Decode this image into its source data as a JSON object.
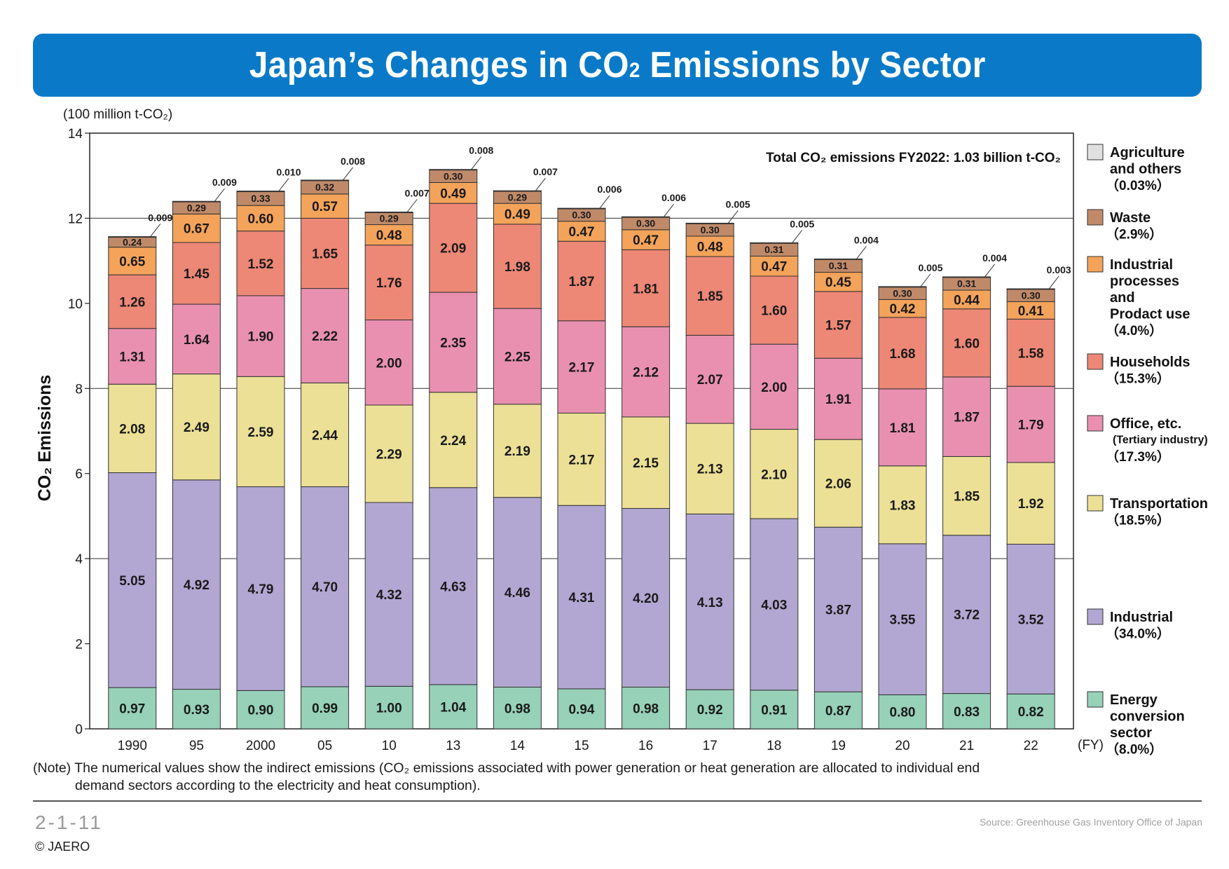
{
  "title": {
    "main": "Japan’s Changes in CO",
    "sub": "2",
    "rest": " Emissions by Sector"
  },
  "note": {
    "line1": "(Note) The numerical values show the indirect emissions (CO₂ emissions associated with power generation or heat generation are allocated to individual end",
    "line2": "demand sectors according to the electricity and heat consumption)."
  },
  "figure_number": "2-1-11",
  "copyright": "© JAERO",
  "source": "Source: Greenhouse Gas Inventory Office of Japan",
  "colors": {
    "energy": "#96d1b8",
    "industrial": "#b2a7d2",
    "transportation": "#ebe095",
    "office": "#e990b0",
    "households": "#ed8776",
    "industrial_processes": "#f4a35a",
    "waste": "#c08a69",
    "agriculture": "#e0e0e0",
    "title_bar": "#0a7ac8"
  },
  "chart_data": {
    "type": "bar",
    "stacked": true,
    "title": "Japan’s Changes in CO₂ Emissions by Sector",
    "unit_label": "(100 million t-CO₂)",
    "ylabel": "CO₂ Emissions",
    "xlabel_suffix": "(FY)",
    "annotation": "Total CO₂ emissions FY2022: 1.03 billion t-CO₂",
    "ylim": [
      0,
      14
    ],
    "yticks": [
      0,
      2,
      4,
      6,
      8,
      10,
      12,
      14
    ],
    "grid": "horizontal at 4, 8, 12",
    "legend_position": "right",
    "categories": [
      "1990",
      "95",
      "2000",
      "05",
      "10",
      "13",
      "14",
      "15",
      "16",
      "17",
      "18",
      "19",
      "20",
      "21",
      "22"
    ],
    "series": [
      {
        "name": "Energy conversion sector",
        "percent": "(8.0%)",
        "color": "#96d1b8",
        "values": [
          0.97,
          0.93,
          0.9,
          0.99,
          1.0,
          1.04,
          0.98,
          0.94,
          0.98,
          0.92,
          0.91,
          0.87,
          0.8,
          0.83,
          0.82
        ],
        "labels": [
          "0.97",
          "0.93",
          "0.90",
          "0.99",
          "1.00",
          "1.04",
          "0.98",
          "0.94",
          "0.98",
          "0.92",
          "0.91",
          "0.87",
          "0.80",
          "0.83",
          "0.82"
        ]
      },
      {
        "name": "Industrial",
        "percent": "(34.0%)",
        "color": "#b2a7d2",
        "values": [
          5.05,
          4.92,
          4.79,
          4.7,
          4.32,
          4.63,
          4.46,
          4.31,
          4.2,
          4.13,
          4.03,
          3.87,
          3.55,
          3.72,
          3.52
        ],
        "labels": [
          "5.05",
          "4.92",
          "4.79",
          "4.70",
          "4.32",
          "4.63",
          "4.46",
          "4.31",
          "4.20",
          "4.13",
          "4.03",
          "3.87",
          "3.55",
          "3.72",
          "3.52"
        ]
      },
      {
        "name": "Transportation",
        "percent": "(18.5%)",
        "color": "#ebe095",
        "values": [
          2.08,
          2.49,
          2.59,
          2.44,
          2.29,
          2.24,
          2.19,
          2.17,
          2.15,
          2.13,
          2.1,
          2.06,
          1.83,
          1.85,
          1.92
        ],
        "labels": [
          "2.08",
          "2.49",
          "2.59",
          "2.44",
          "2.29",
          "2.24",
          "2.19",
          "2.17",
          "2.15",
          "2.13",
          "2.10",
          "2.06",
          "1.83",
          "1.85",
          "1.92"
        ]
      },
      {
        "name": "Office, etc.",
        "subname": "(Tertiary industry)",
        "percent": "(17.3%)",
        "color": "#e990b0",
        "values": [
          1.31,
          1.64,
          1.9,
          2.22,
          2.0,
          2.35,
          2.25,
          2.17,
          2.12,
          2.07,
          2.0,
          1.91,
          1.81,
          1.87,
          1.79
        ],
        "labels": [
          "1.31",
          "1.64",
          "1.90",
          "2.22",
          "2.00",
          "2.35",
          "2.25",
          "2.17",
          "2.12",
          "2.07",
          "2.00",
          "1.91",
          "1.81",
          "1.87",
          "1.79"
        ]
      },
      {
        "name": "Households",
        "percent": "(15.3%)",
        "color": "#ed8776",
        "values": [
          1.26,
          1.45,
          1.52,
          1.65,
          1.76,
          2.09,
          1.98,
          1.87,
          1.81,
          1.85,
          1.6,
          1.57,
          1.68,
          1.6,
          1.58
        ],
        "labels": [
          "1.26",
          "1.45",
          "1.52",
          "1.65",
          "1.76",
          "2.09",
          "1.98",
          "1.87",
          "1.81",
          "1.85",
          "1.60",
          "1.57",
          "1.68",
          "1.60",
          "1.58"
        ]
      },
      {
        "name": "Industrial processes and Prodact use",
        "percent": "(4.0%)",
        "color": "#f4a35a",
        "values": [
          0.65,
          0.67,
          0.6,
          0.57,
          0.48,
          0.49,
          0.49,
          0.47,
          0.47,
          0.48,
          0.47,
          0.45,
          0.42,
          0.44,
          0.41
        ],
        "labels": [
          "0.65",
          "0.67",
          "0.60",
          "0.57",
          "0.48",
          "0.49",
          "0.49",
          "0.47",
          "0.47",
          "0.48",
          "0.47",
          "0.45",
          "0.42",
          "0.44",
          "0.41"
        ]
      },
      {
        "name": "Waste",
        "percent": "(2.9%)",
        "color": "#c08a69",
        "values": [
          0.24,
          0.29,
          0.33,
          0.32,
          0.29,
          0.3,
          0.29,
          0.3,
          0.3,
          0.3,
          0.31,
          0.31,
          0.3,
          0.31,
          0.3
        ],
        "labels": [
          "0.24",
          "0.29",
          "0.33",
          "0.32",
          "0.29",
          "0.30",
          "0.29",
          "0.30",
          "0.30",
          "0.30",
          "0.31",
          "0.31",
          "0.30",
          "0.31",
          "0.30"
        ]
      },
      {
        "name": "Agriculture and others",
        "percent": "(0.03%)",
        "color": "#e0e0e0",
        "values": [
          0.009,
          0.009,
          0.01,
          0.008,
          0.007,
          0.008,
          0.007,
          0.006,
          0.006,
          0.005,
          0.005,
          0.004,
          0.005,
          0.004,
          0.003
        ],
        "labels": [
          "0.009",
          "0.009",
          "0.010",
          "0.008",
          "0.007",
          "0.008",
          "0.007",
          "0.006",
          "0.006",
          "0.005",
          "0.005",
          "0.004",
          "0.005",
          "0.004",
          "0.003"
        ]
      }
    ],
    "legend": [
      {
        "lines": [
          "Agriculture",
          "and others"
        ],
        "percent": "（0.03%）",
        "color": "#e0e0e0"
      },
      {
        "lines": [
          "Waste"
        ],
        "percent": "（2.9%）",
        "color": "#c08a69"
      },
      {
        "lines": [
          "Industrial",
          "processes",
          "and",
          "Prodact use"
        ],
        "percent": "（4.0%）",
        "color": "#f4a35a"
      },
      {
        "lines": [
          "Households"
        ],
        "percent": "（15.3%）",
        "color": "#ed8776"
      },
      {
        "lines": [
          "Office, etc."
        ],
        "sublabel": "(Tertiary industry)",
        "percent": "（17.3%）",
        "color": "#e990b0"
      },
      {
        "lines": [
          "Transportation"
        ],
        "percent": "（18.5%）",
        "color": "#ebe095"
      },
      {
        "lines": [
          "Industrial"
        ],
        "percent": "（34.0%）",
        "color": "#b2a7d2"
      },
      {
        "lines": [
          "Energy",
          "conversion",
          "sector"
        ],
        "percent": "（8.0%）",
        "color": "#96d1b8"
      }
    ]
  }
}
